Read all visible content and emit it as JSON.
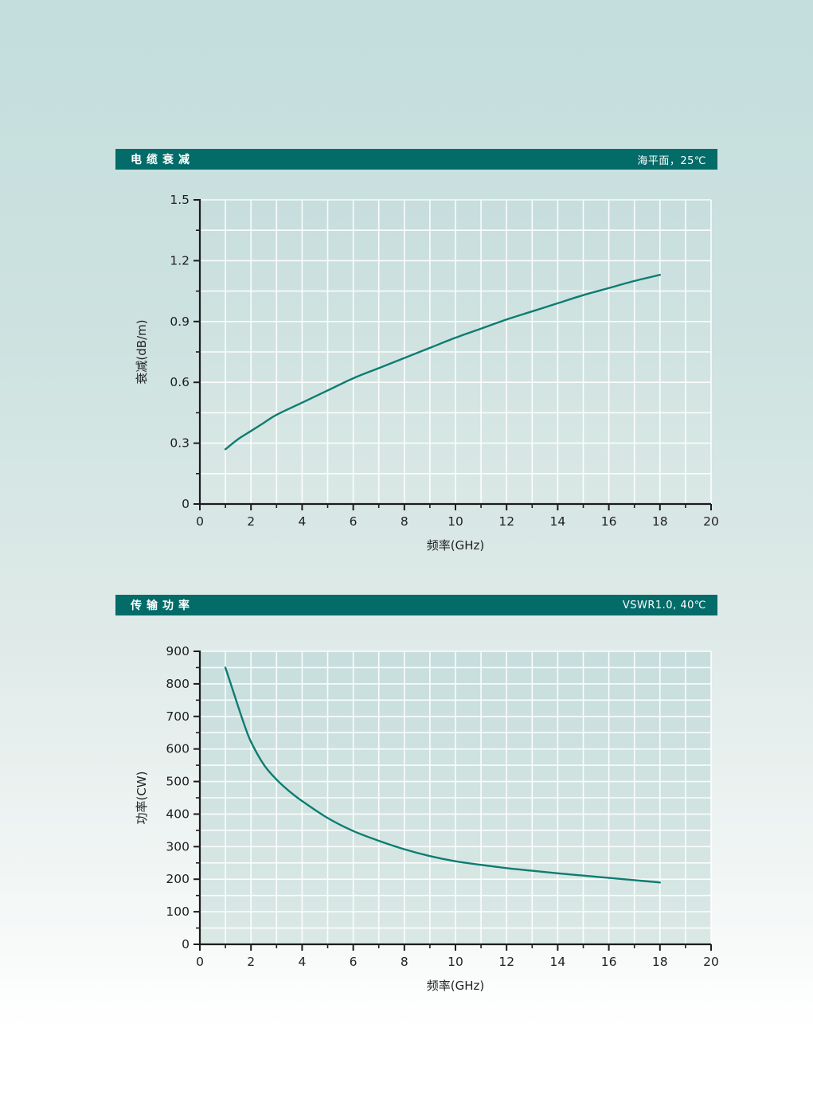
{
  "page": {
    "bg_gradient_top": "#c3dedd",
    "bg_gradient_bottom": "#ffffff"
  },
  "colors": {
    "header_bg": "#036b68",
    "header_text": "#ffffff",
    "curve": "#0e7c71",
    "plot_bg_top": "#c7dedd",
    "plot_bg_bottom": "#dae8e5",
    "gridline": "#ffffff",
    "axis": "#1c1c1c",
    "label": "#1f1f1f"
  },
  "chart_data": [
    {
      "type": "line",
      "title": "电缆衰减",
      "condition": "海平面，25℃",
      "xlabel": "频率(GHz)",
      "ylabel": "衰减(dB/m)",
      "xlim": [
        0,
        20
      ],
      "ylim": [
        0,
        1.5
      ],
      "grid": true,
      "legend": "none",
      "x_tick_values": [
        0,
        2,
        4,
        6,
        8,
        10,
        12,
        14,
        16,
        18,
        20
      ],
      "x_tick_labels": [
        "0",
        "2",
        "4",
        "6",
        "8",
        "10",
        "12",
        "14",
        "16",
        "18",
        "20"
      ],
      "x_minor_step": 1,
      "y_tick_values": [
        0,
        0.3,
        0.6,
        0.9,
        1.2,
        1.5
      ],
      "y_tick_labels": [
        "0",
        "0.3",
        "0.6",
        "0.9",
        "1.2",
        "1.5"
      ],
      "y_minor_step": 0.15,
      "series": [
        {
          "name": "cable-attenuation",
          "x": [
            1,
            1.5,
            2,
            2.5,
            3,
            4,
            5,
            6,
            7,
            8,
            9,
            10,
            11,
            12,
            13,
            14,
            15,
            16,
            17,
            18
          ],
          "values": [
            0.27,
            0.32,
            0.36,
            0.4,
            0.44,
            0.5,
            0.56,
            0.62,
            0.67,
            0.72,
            0.77,
            0.82,
            0.865,
            0.91,
            0.95,
            0.99,
            1.03,
            1.065,
            1.1,
            1.13
          ]
        }
      ]
    },
    {
      "type": "line",
      "title": "传输功率",
      "condition": "VSWR1.0, 40℃",
      "xlabel": "频率(GHz)",
      "ylabel": "功率(CW)",
      "xlim": [
        0,
        20
      ],
      "ylim": [
        0,
        900
      ],
      "grid": true,
      "legend": "none",
      "x_tick_values": [
        0,
        2,
        4,
        6,
        8,
        10,
        12,
        14,
        16,
        18,
        20
      ],
      "x_tick_labels": [
        "0",
        "2",
        "4",
        "6",
        "8",
        "10",
        "12",
        "14",
        "16",
        "18",
        "20"
      ],
      "x_minor_step": 1,
      "y_tick_values": [
        0,
        100,
        200,
        300,
        400,
        500,
        600,
        700,
        800,
        900
      ],
      "y_tick_labels": [
        "0",
        "100",
        "200",
        "300",
        "400",
        "500",
        "600",
        "700",
        "800",
        "900"
      ],
      "y_minor_step": 50,
      "series": [
        {
          "name": "transmission-power",
          "x": [
            1,
            1.25,
            1.5,
            1.75,
            2,
            2.5,
            3,
            3.5,
            4,
            5,
            6,
            7,
            8,
            9,
            10,
            11,
            12,
            13,
            14,
            15,
            16,
            17,
            18
          ],
          "values": [
            850,
            790,
            730,
            672,
            622,
            552,
            506,
            470,
            440,
            388,
            348,
            318,
            292,
            271,
            255,
            244,
            234,
            226,
            218,
            211,
            204,
            197,
            190
          ]
        }
      ]
    }
  ]
}
